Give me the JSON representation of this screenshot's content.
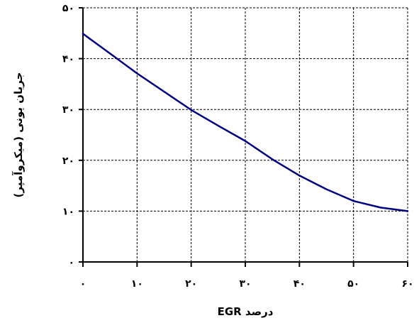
{
  "chart_data": {
    "type": "line",
    "x_tick_labels": [
      "۰",
      "۱۰",
      "۲۰",
      "۳۰",
      "۴۰",
      "۵۰",
      "۶۰"
    ],
    "y_tick_labels": [
      "۰",
      "۱۰",
      "۲۰",
      "۳۰",
      "۴۰",
      "۵۰"
    ],
    "x_ticks": [
      0,
      10,
      20,
      30,
      40,
      50,
      60
    ],
    "y_ticks": [
      0,
      10,
      20,
      30,
      40,
      50
    ],
    "xlim": [
      0,
      60
    ],
    "ylim": [
      0,
      50
    ],
    "grid": true,
    "xlabel": "درصد EGR",
    "ylabel": "جریان یونی (میکروآمپر)",
    "series": [
      {
        "color": "#000080",
        "points": [
          [
            0,
            44.9
          ],
          [
            5,
            41
          ],
          [
            10,
            37.1
          ],
          [
            15,
            33.5
          ],
          [
            20,
            29.9
          ],
          [
            25,
            26.8
          ],
          [
            30,
            23.8
          ],
          [
            35,
            20.2
          ],
          [
            40,
            17
          ],
          [
            45,
            14.3
          ],
          [
            50,
            12
          ],
          [
            55,
            10.7
          ],
          [
            60,
            10
          ]
        ]
      }
    ]
  }
}
